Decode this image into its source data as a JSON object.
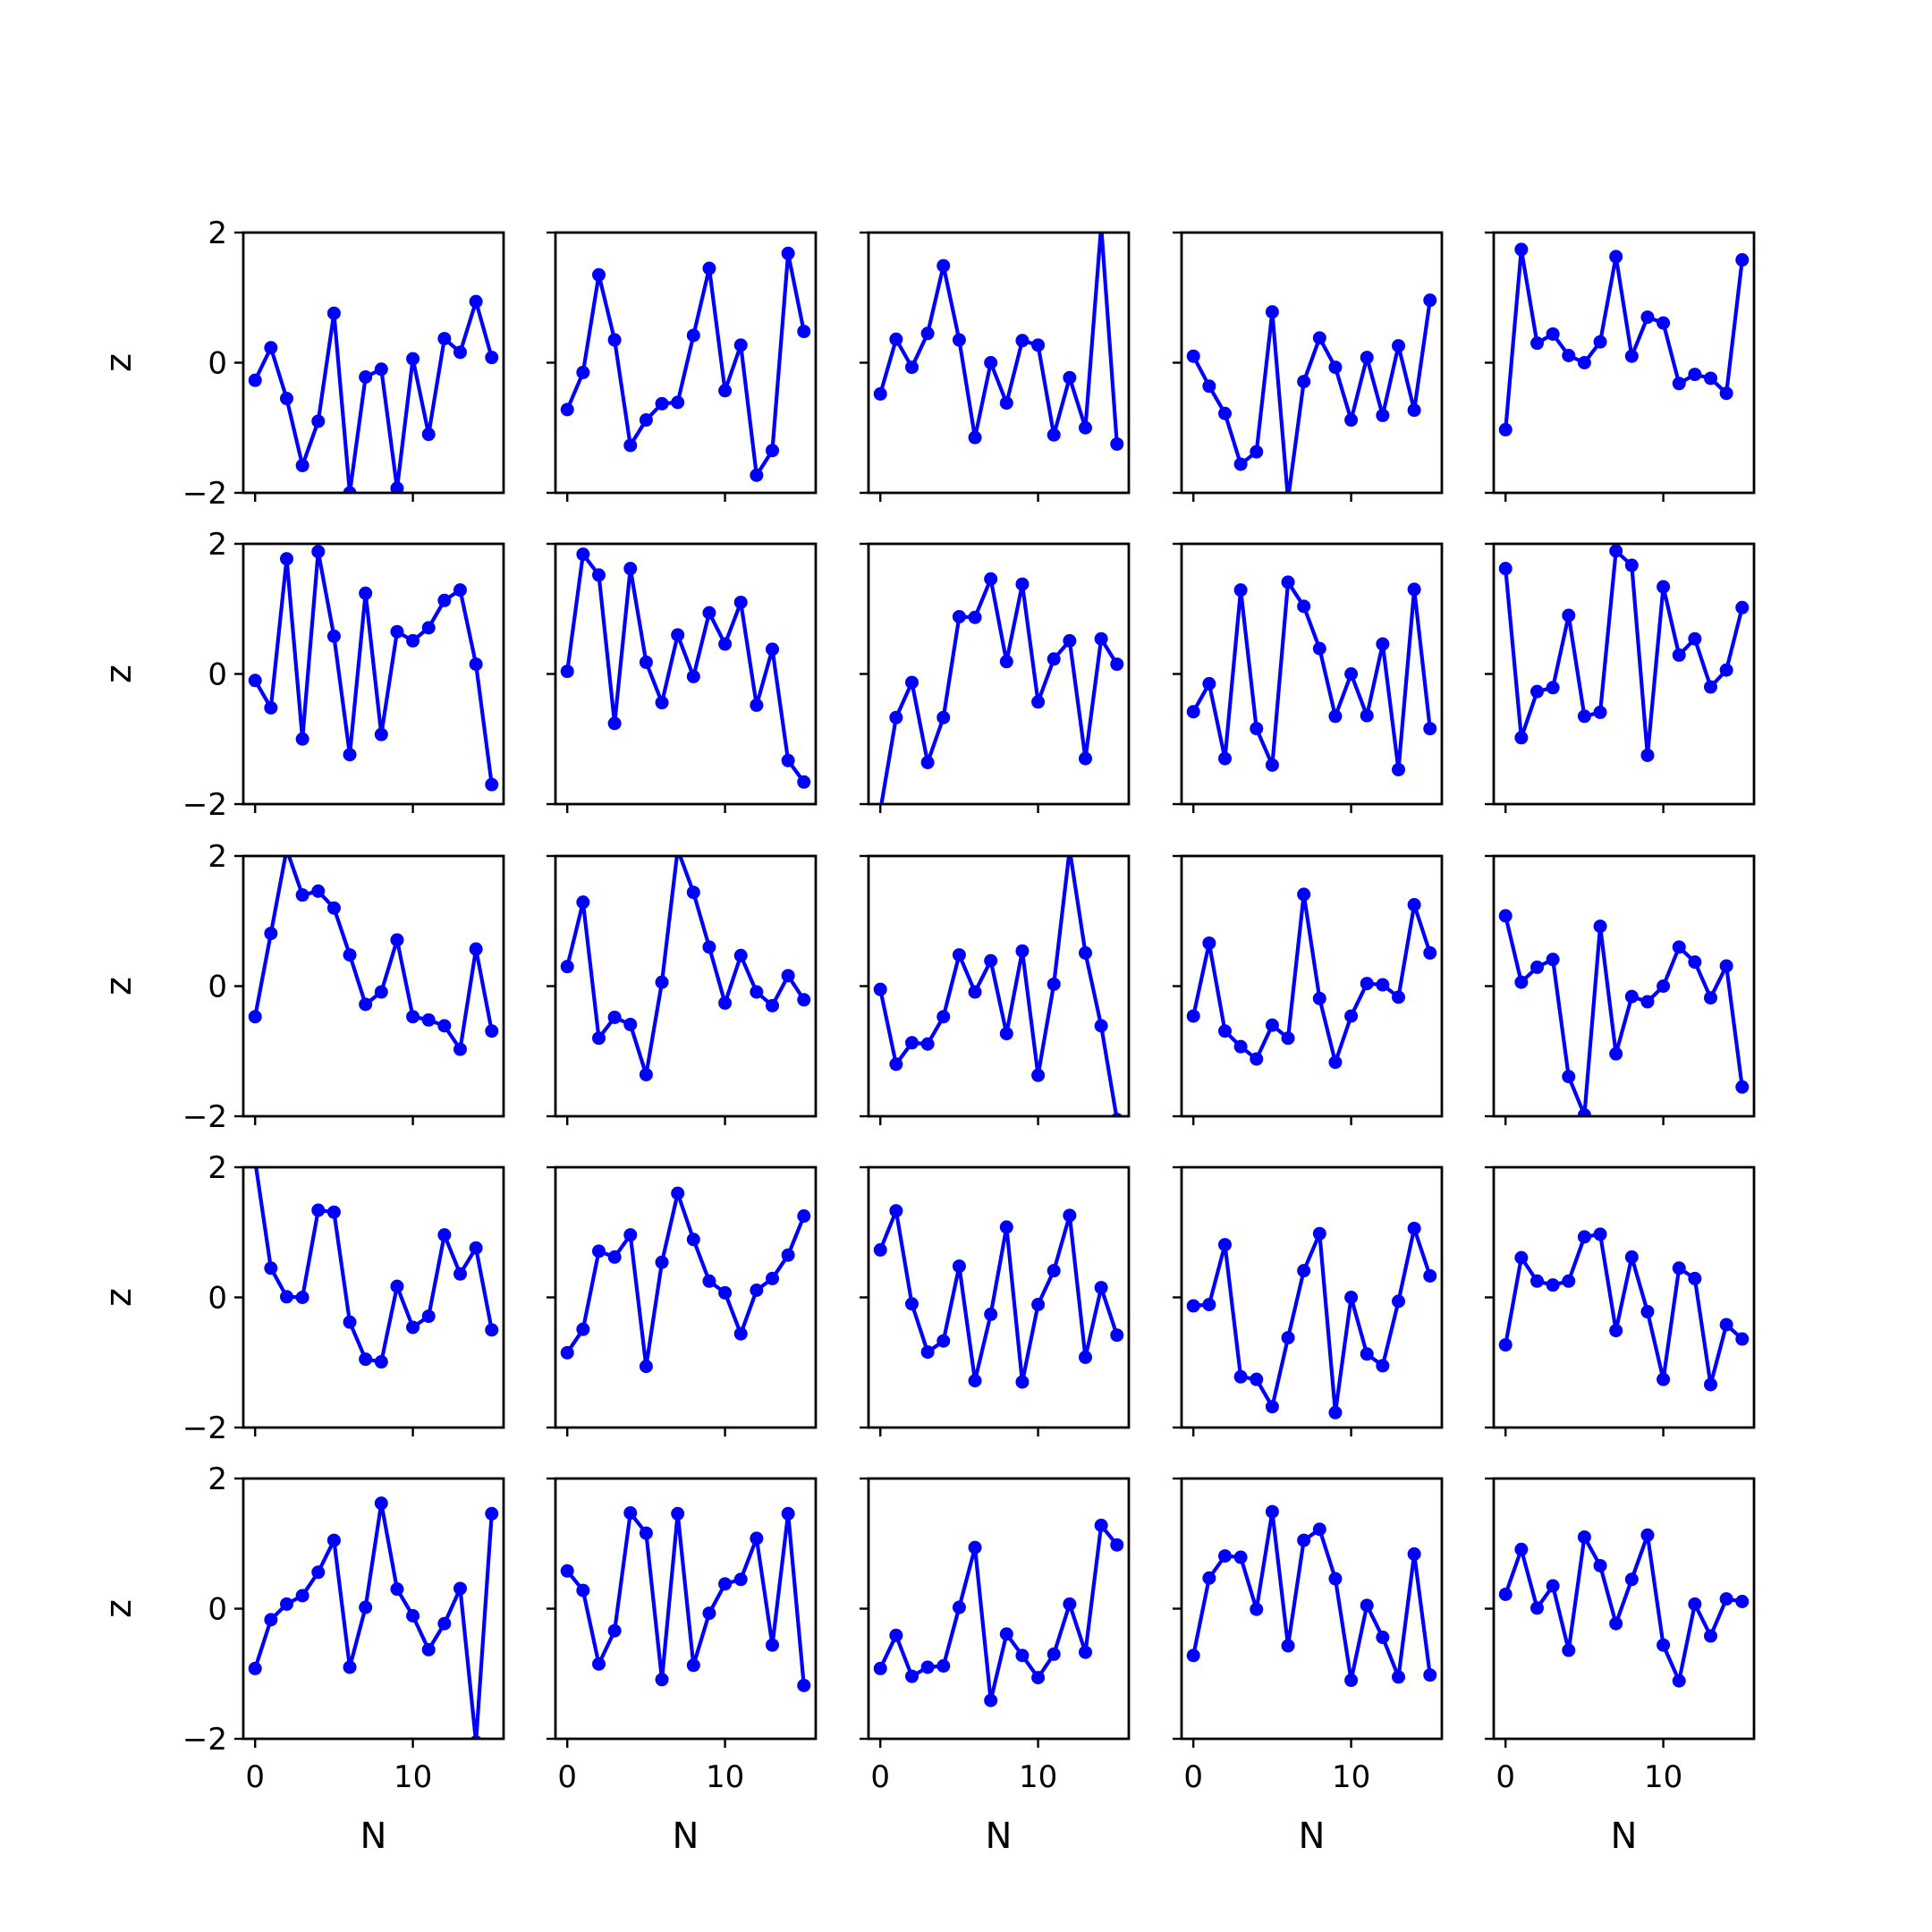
{
  "chart_data": {
    "type": "line",
    "rows": 5,
    "cols": 5,
    "xlabel": "N",
    "ylabel": "z",
    "xlim": [
      -0.75,
      15.75
    ],
    "ylim": [
      -2,
      2
    ],
    "xticks": [
      0,
      10
    ],
    "xtick_labels": [
      "0",
      "10"
    ],
    "yticks": [
      -2,
      0,
      2
    ],
    "ytick_labels": [
      "−2",
      "0",
      "2"
    ],
    "x": [
      0,
      1,
      2,
      3,
      4,
      5,
      6,
      7,
      8,
      9,
      10,
      11,
      12,
      13,
      14,
      15
    ],
    "line_color": "#0000ff",
    "marker": "circle",
    "grid": false,
    "panels": [
      {
        "values": [
          -0.27,
          0.23,
          -0.55,
          -1.58,
          -0.9,
          0.76,
          -2.0,
          -0.22,
          -0.1,
          -1.93,
          0.06,
          -1.1,
          0.37,
          0.16,
          0.94,
          0.08
        ]
      },
      {
        "values": [
          -0.72,
          -0.15,
          1.35,
          0.35,
          -1.27,
          -0.88,
          -0.63,
          -0.61,
          0.42,
          1.45,
          -0.43,
          0.27,
          -1.73,
          -1.35,
          1.68,
          0.48
        ]
      },
      {
        "values": [
          -0.48,
          0.36,
          -0.07,
          0.45,
          1.49,
          0.35,
          -1.15,
          0.0,
          -0.62,
          0.34,
          0.27,
          -1.11,
          -0.23,
          -1.0,
          2.1,
          -1.25
        ]
      },
      {
        "values": [
          0.1,
          -0.36,
          -0.78,
          -1.56,
          -1.37,
          0.78,
          -2.1,
          -0.29,
          0.38,
          -0.07,
          -0.88,
          0.08,
          -0.81,
          0.26,
          -0.73,
          0.96
        ]
      },
      {
        "values": [
          -1.03,
          1.74,
          0.3,
          0.44,
          0.11,
          0.0,
          0.32,
          1.63,
          0.1,
          0.7,
          0.61,
          -0.32,
          -0.18,
          -0.24,
          -0.47,
          1.58
        ]
      },
      {
        "values": [
          -0.1,
          -0.52,
          1.77,
          -1.0,
          1.88,
          0.58,
          -1.24,
          1.24,
          -0.93,
          0.65,
          0.51,
          0.71,
          1.13,
          1.29,
          0.15,
          -1.7
        ]
      },
      {
        "values": [
          0.04,
          1.84,
          1.52,
          -0.76,
          1.62,
          0.18,
          -0.44,
          0.6,
          -0.04,
          0.94,
          0.46,
          1.1,
          -0.48,
          0.38,
          -1.33,
          -1.66
        ]
      },
      {
        "values": [
          -2.1,
          -0.67,
          -0.13,
          -1.36,
          -0.67,
          0.88,
          0.87,
          1.46,
          0.19,
          1.38,
          -0.43,
          0.23,
          0.51,
          -1.3,
          0.54,
          0.15
        ]
      },
      {
        "values": [
          -0.58,
          -0.15,
          -1.3,
          1.29,
          -0.84,
          -1.4,
          1.41,
          1.04,
          0.39,
          -0.65,
          0.0,
          -0.64,
          0.46,
          -1.47,
          1.3,
          -0.84
        ]
      },
      {
        "values": [
          1.62,
          -0.98,
          -0.27,
          -0.21,
          0.9,
          -0.65,
          -0.59,
          1.89,
          1.67,
          -1.25,
          1.34,
          0.29,
          0.54,
          -0.2,
          0.06,
          1.02
        ]
      },
      {
        "values": [
          -0.47,
          0.81,
          2.1,
          1.4,
          1.46,
          1.2,
          0.48,
          -0.28,
          -0.09,
          0.71,
          -0.47,
          -0.52,
          -0.61,
          -0.97,
          0.57,
          -0.69
        ]
      },
      {
        "values": [
          0.3,
          1.29,
          -0.8,
          -0.48,
          -0.59,
          -1.36,
          0.06,
          2.1,
          1.44,
          0.6,
          -0.26,
          0.47,
          -0.09,
          -0.3,
          0.16,
          -0.21
        ]
      },
      {
        "values": [
          -0.05,
          -1.2,
          -0.87,
          -0.89,
          -0.47,
          0.48,
          -0.09,
          0.39,
          -0.73,
          0.54,
          -1.37,
          0.03,
          2.1,
          0.51,
          -0.61,
          -2.05
        ]
      },
      {
        "values": [
          -0.46,
          0.66,
          -0.69,
          -0.93,
          -1.12,
          -0.6,
          -0.8,
          1.41,
          -0.19,
          -1.17,
          -0.46,
          0.04,
          0.02,
          -0.17,
          1.25,
          0.51
        ]
      },
      {
        "values": [
          1.08,
          0.06,
          0.29,
          0.41,
          -1.39,
          -1.98,
          0.92,
          -1.04,
          -0.16,
          -0.24,
          0.0,
          0.6,
          0.37,
          -0.18,
          0.31,
          -1.55
        ]
      },
      {
        "values": [
          2.1,
          0.45,
          0.01,
          0.0,
          1.34,
          1.31,
          -0.38,
          -0.95,
          -0.99,
          0.17,
          -0.46,
          -0.29,
          0.96,
          0.36,
          0.76,
          -0.5
        ]
      },
      {
        "values": [
          -0.85,
          -0.49,
          0.71,
          0.62,
          0.96,
          -1.06,
          0.54,
          1.6,
          0.89,
          0.25,
          0.07,
          -0.56,
          0.11,
          0.29,
          0.65,
          1.25
        ]
      },
      {
        "values": [
          0.73,
          1.33,
          -0.1,
          -0.84,
          -0.67,
          0.48,
          -1.28,
          -0.26,
          1.08,
          -1.3,
          -0.11,
          0.41,
          1.26,
          -0.92,
          0.15,
          -0.58
        ]
      },
      {
        "values": [
          -0.13,
          -0.11,
          0.81,
          -1.22,
          -1.26,
          -1.68,
          -0.62,
          0.41,
          0.98,
          -1.77,
          0.0,
          -0.87,
          -1.05,
          -0.06,
          1.06,
          0.33
        ]
      },
      {
        "values": [
          -0.73,
          0.61,
          0.25,
          0.19,
          0.25,
          0.93,
          0.97,
          -0.51,
          0.62,
          -0.22,
          -1.26,
          0.45,
          0.29,
          -1.34,
          -0.42,
          -0.64
        ]
      },
      {
        "values": [
          -0.92,
          -0.17,
          0.07,
          0.2,
          0.56,
          1.05,
          -0.9,
          0.02,
          1.62,
          0.3,
          -0.11,
          -0.63,
          -0.23,
          0.31,
          -2.05,
          1.46
        ]
      },
      {
        "values": [
          0.58,
          0.28,
          -0.85,
          -0.34,
          1.47,
          1.16,
          -1.09,
          1.46,
          -0.87,
          -0.07,
          0.38,
          0.45,
          1.08,
          -0.56,
          1.46,
          -1.18
        ]
      },
      {
        "values": [
          -0.92,
          -0.41,
          -1.04,
          -0.9,
          -0.88,
          0.02,
          0.94,
          -1.41,
          -0.39,
          -0.72,
          -1.06,
          -0.7,
          0.07,
          -0.67,
          1.28,
          0.98
        ]
      },
      {
        "values": [
          -0.72,
          0.47,
          0.81,
          0.79,
          -0.01,
          1.49,
          -0.57,
          1.05,
          1.22,
          0.46,
          -1.1,
          0.05,
          -0.44,
          -1.05,
          0.84,
          -1.02
        ]
      },
      {
        "values": [
          0.22,
          0.91,
          0.01,
          0.35,
          -0.64,
          1.1,
          0.66,
          -0.23,
          0.45,
          1.13,
          -0.56,
          -1.11,
          0.07,
          -0.42,
          0.15,
          0.11
        ]
      }
    ]
  }
}
